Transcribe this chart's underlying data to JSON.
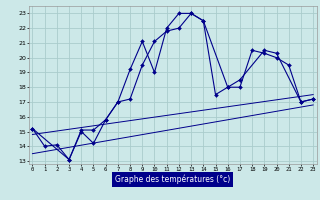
{
  "title": "Graphe des températures (°c)",
  "bg_color": "#cce8e8",
  "grid_color": "#aacccc",
  "line_color": "#00008b",
  "line1_x": [
    0,
    1,
    2,
    3,
    4,
    5,
    6,
    7,
    8,
    9,
    10,
    11,
    12,
    13,
    14,
    15,
    16,
    17,
    18,
    19,
    20,
    21,
    22,
    23
  ],
  "line1_y": [
    15.2,
    14.0,
    14.1,
    13.1,
    15.0,
    14.2,
    15.8,
    17.0,
    19.2,
    21.1,
    19.0,
    22.0,
    23.0,
    23.0,
    22.5,
    17.5,
    18.0,
    18.0,
    20.5,
    20.3,
    20.0,
    19.5,
    17.0,
    17.2
  ],
  "line2_x": [
    0,
    3,
    4,
    5,
    6,
    7,
    8,
    9,
    10,
    11,
    12,
    13,
    14,
    16,
    17,
    19,
    20,
    22,
    23
  ],
  "line2_y": [
    15.2,
    13.1,
    15.1,
    15.1,
    15.8,
    17.0,
    17.2,
    19.5,
    21.1,
    21.8,
    22.0,
    23.0,
    22.5,
    18.0,
    18.5,
    20.5,
    20.3,
    17.0,
    17.2
  ],
  "line3_x": [
    0,
    23
  ],
  "line3_y": [
    14.8,
    17.5
  ],
  "line4_x": [
    0,
    23
  ],
  "line4_y": [
    13.5,
    16.8
  ],
  "xlim": [
    -0.3,
    23.3
  ],
  "ylim": [
    12.8,
    23.5
  ],
  "xticks": [
    0,
    1,
    2,
    3,
    4,
    5,
    6,
    7,
    8,
    9,
    10,
    11,
    12,
    13,
    14,
    15,
    16,
    17,
    18,
    19,
    20,
    21,
    22,
    23
  ],
  "yticks": [
    13,
    14,
    15,
    16,
    17,
    18,
    19,
    20,
    21,
    22,
    23
  ]
}
